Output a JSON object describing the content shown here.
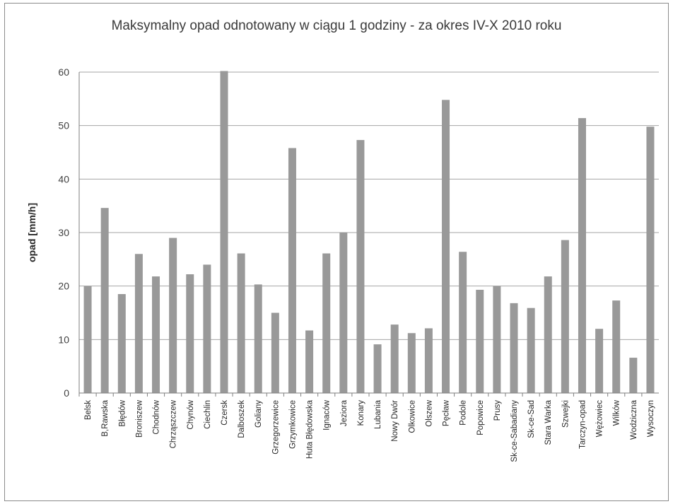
{
  "chart_data": {
    "type": "bar",
    "title": "Maksymalny opad odnotowany w ciągu 1 godziny  - za okres IV-X 2010 roku",
    "xlabel": "",
    "ylabel": "opad [mm/h]",
    "ylim": [
      0,
      60
    ],
    "yticks": [
      "0",
      "10",
      "20",
      "30",
      "40",
      "50",
      "60"
    ],
    "grid": true,
    "legend": "none",
    "bar_color": "#999999",
    "categories": [
      "Belsk",
      "B,Rawska",
      "Błędów",
      "Broniszew",
      "Chodnów",
      "Chrząszczew",
      "Chynów",
      "Ciechlin",
      "Czersk",
      "Dalboszek",
      "Goliany",
      "Grzegorzewice",
      "Grzymkowice",
      "Huta Błędowska",
      "Ignaców",
      "Jeziora",
      "Konary",
      "Lubania",
      "Nowy Dwór",
      "Olkowice",
      "Olszew",
      "Pęcław",
      "Podole",
      "Popowice",
      "Prusy",
      "Sk-ce-Sabadiany",
      "Sk-ce-Sad",
      "Stara Warka",
      "Szwejki",
      "Tarczyn-opad",
      "Wężowiec",
      "Wilków",
      "Wodziczna",
      "Wysoczyn"
    ],
    "values": [
      20.0,
      34.6,
      18.5,
      26.0,
      21.8,
      29.0,
      22.2,
      24.0,
      60.2,
      26.1,
      20.3,
      15.0,
      45.8,
      11.7,
      26.1,
      30.0,
      47.3,
      9.1,
      12.8,
      11.2,
      12.1,
      54.8,
      26.4,
      19.3,
      20.0,
      16.8,
      15.9,
      21.8,
      28.6,
      51.4,
      12.0,
      17.3,
      6.6,
      49.8
    ]
  }
}
